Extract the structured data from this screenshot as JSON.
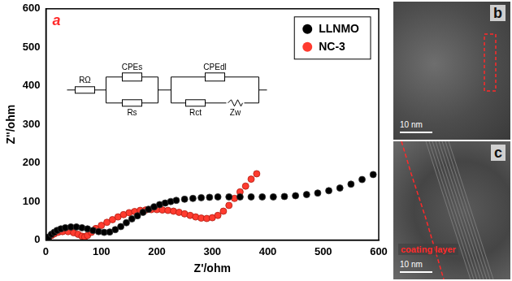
{
  "chart_data": {
    "type": "scatter",
    "panel": "a",
    "x_label": "Z'/ohm",
    "y_label": "Z''/ohm",
    "xlim": [
      0,
      600
    ],
    "ylim": [
      0,
      600
    ],
    "xticks": [
      0,
      100,
      200,
      300,
      400,
      500,
      600
    ],
    "yticks": [
      0,
      100,
      200,
      300,
      400,
      500,
      600
    ],
    "grid": false,
    "legend": "upper right",
    "circuit": {
      "labels": [
        "RΩ",
        "CPEs",
        "Rs",
        "CPEdl",
        "Rct",
        "Zw"
      ]
    },
    "series": [
      {
        "name": "LLNMO",
        "color": "#000000",
        "marker": "circle",
        "x": [
          2,
          5,
          10,
          15,
          20,
          27,
          35,
          45,
          55,
          65,
          75,
          85,
          95,
          105,
          115,
          125,
          135,
          145,
          155,
          165,
          175,
          185,
          195,
          205,
          215,
          225,
          235,
          250,
          265,
          280,
          295,
          310,
          330,
          350,
          370,
          390,
          410,
          430,
          450,
          470,
          490,
          510,
          530,
          550,
          570,
          590
        ],
        "values": [
          2,
          8,
          15,
          20,
          25,
          29,
          32,
          34,
          34,
          32,
          29,
          25,
          22,
          20,
          21,
          27,
          35,
          45,
          55,
          63,
          72,
          80,
          86,
          92,
          96,
          100,
          103,
          106,
          108,
          110,
          111,
          112,
          112,
          112,
          112,
          112,
          112,
          113,
          115,
          118,
          122,
          128,
          135,
          145,
          157,
          170
        ]
      },
      {
        "name": "NC-3",
        "color": "#ff3b2f",
        "marker": "circle",
        "x": [
          2,
          5,
          10,
          15,
          22,
          30,
          40,
          50,
          58,
          65,
          70,
          75,
          82,
          90,
          100,
          110,
          120,
          130,
          140,
          150,
          160,
          170,
          180,
          190,
          200,
          210,
          220,
          230,
          240,
          250,
          260,
          270,
          280,
          290,
          300,
          310,
          320,
          330,
          340,
          350,
          360,
          370,
          380
        ],
        "values": [
          2,
          6,
          12,
          16,
          20,
          22,
          22,
          19,
          15,
          10,
          8,
          12,
          20,
          30,
          38,
          46,
          53,
          60,
          66,
          71,
          74,
          77,
          78,
          79,
          79,
          78,
          77,
          75,
          72,
          68,
          64,
          60,
          57,
          56,
          58,
          64,
          75,
          90,
          108,
          125,
          140,
          158,
          172
        ]
      }
    ]
  },
  "images": [
    {
      "label": "b",
      "scale_bar": "10 nm"
    },
    {
      "label": "c",
      "scale_bar": "10 nm",
      "annotation": "coating layer"
    }
  ]
}
